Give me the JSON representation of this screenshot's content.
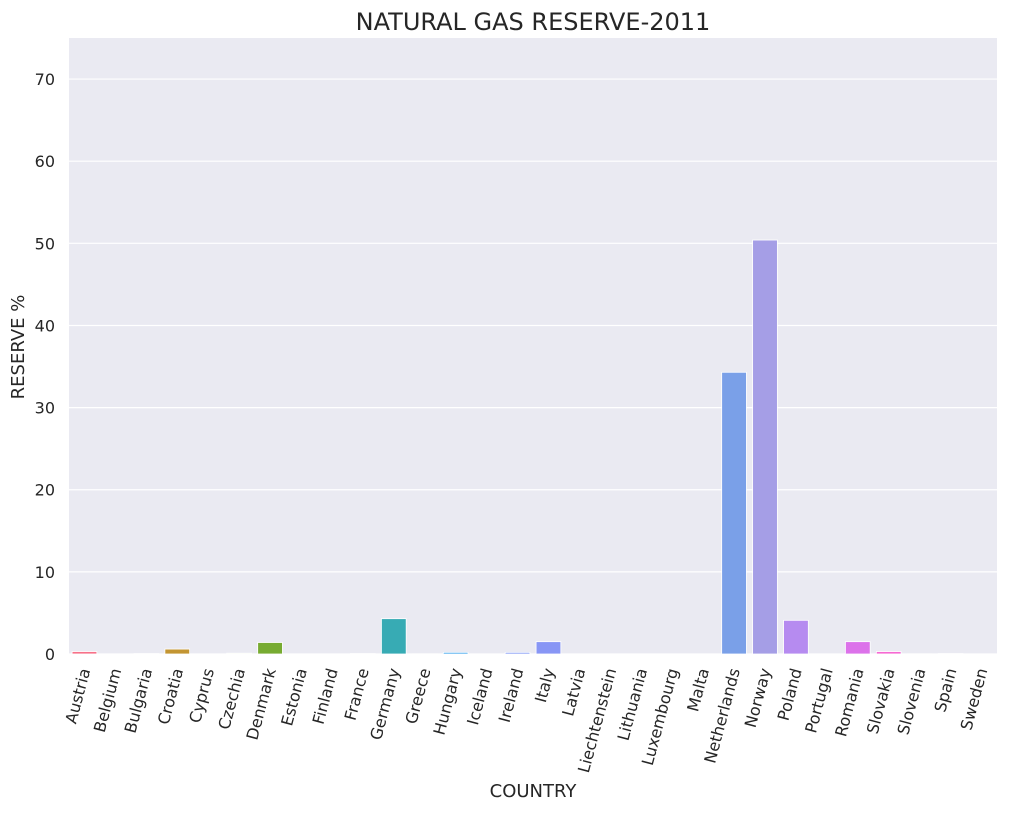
{
  "chart_data": {
    "type": "bar",
    "title": "NATURAL GAS RESERVE-2011",
    "xlabel": "COUNTRY",
    "ylabel": "RESERVE %",
    "ylim": [
      0,
      75
    ],
    "yticks": [
      0,
      10,
      20,
      30,
      40,
      50,
      60,
      70
    ],
    "grid": true,
    "categories": [
      "Austria",
      "Belgium",
      "Bulgaria",
      "Croatia",
      "Cyprus",
      "Czechia",
      "Denmark",
      "Estonia",
      "Finland",
      "France",
      "Germany",
      "Greece",
      "Hungary",
      "Iceland",
      "Ireland",
      "Italy",
      "Latvia",
      "Liechtenstein",
      "Lithuania",
      "Luxembourg",
      "Malta",
      "Netherlands",
      "Norway",
      "Poland",
      "Portugal",
      "Romania",
      "Slovakia",
      "Slovenia",
      "Spain",
      "Sweden"
    ],
    "values": [
      0.3,
      0,
      0.05,
      0.6,
      0,
      0.1,
      1.4,
      0,
      0,
      0.05,
      4.3,
      0.02,
      0.2,
      0,
      0.2,
      1.5,
      0,
      0,
      0,
      0,
      0,
      34.3,
      50.4,
      4.1,
      0,
      1.5,
      0.3,
      0.02,
      0.05,
      0
    ],
    "colors": [
      "#f77189",
      "#f7754f",
      "#dc8932",
      "#c39532",
      "#ae9d31",
      "#97a431",
      "#77ab31",
      "#33b07a",
      "#35ad9c",
      "#36ada4",
      "#37abb4",
      "#38a9c5",
      "#3ba3ec",
      "#6e9af4",
      "#7e97f5",
      "#8896f5",
      "#9994f5",
      "#a48cf4",
      "#b584f4",
      "#c67df4",
      "#d56ef4",
      "#7aa0e8",
      "#a59ee6",
      "#b68bf0",
      "#c77ff2",
      "#dc72ea",
      "#f669d3",
      "#f56bc0",
      "#f56db0",
      "#f66fa2"
    ],
    "style": {
      "background": "#eaeaf2",
      "grid_color": "#ffffff"
    }
  }
}
